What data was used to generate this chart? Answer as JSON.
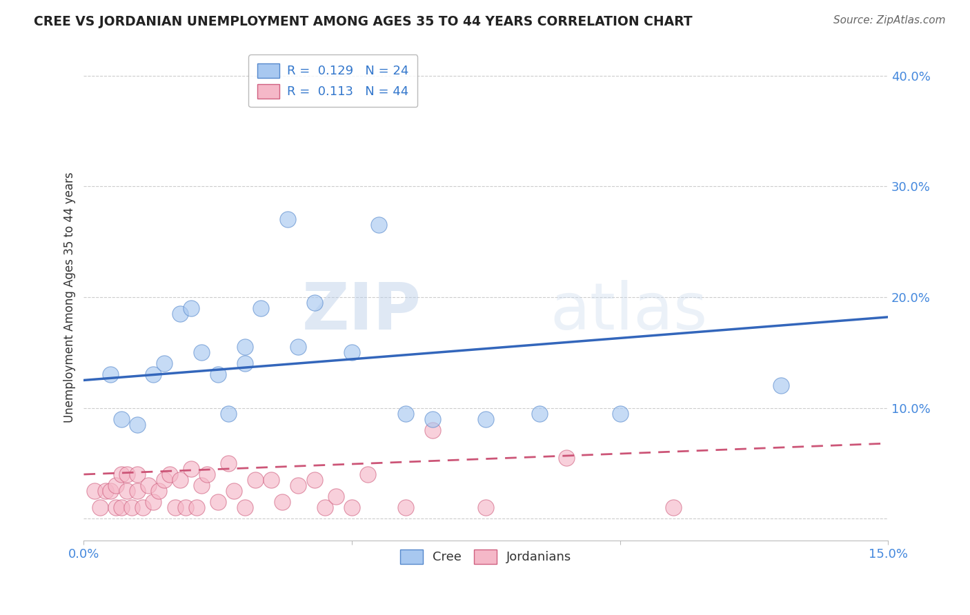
{
  "title": "CREE VS JORDANIAN UNEMPLOYMENT AMONG AGES 35 TO 44 YEARS CORRELATION CHART",
  "source": "Source: ZipAtlas.com",
  "ylabel": "Unemployment Among Ages 35 to 44 years",
  "xlim": [
    0.0,
    0.15
  ],
  "ylim": [
    -0.02,
    0.42
  ],
  "yticks": [
    0.0,
    0.1,
    0.2,
    0.3,
    0.4
  ],
  "ytick_labels": [
    "",
    "10.0%",
    "20.0%",
    "30.0%",
    "40.0%"
  ],
  "xtick_positions": [
    0.0,
    0.05,
    0.1,
    0.15
  ],
  "xtick_labels": [
    "0.0%",
    "",
    "",
    "15.0%"
  ],
  "cree_R": "0.129",
  "cree_N": "24",
  "jordan_R": "0.113",
  "jordan_N": "44",
  "cree_face_color": "#A8C8F0",
  "cree_edge_color": "#5588CC",
  "jordan_face_color": "#F5B8C8",
  "jordan_edge_color": "#D06080",
  "cree_line_color": "#3366BB",
  "jordan_line_color": "#CC5577",
  "cree_line_y0": 0.125,
  "cree_line_y1": 0.182,
  "jordan_line_y0": 0.04,
  "jordan_line_y1": 0.068,
  "cree_x": [
    0.005,
    0.007,
    0.01,
    0.013,
    0.015,
    0.018,
    0.02,
    0.022,
    0.025,
    0.027,
    0.03,
    0.03,
    0.033,
    0.038,
    0.04,
    0.043,
    0.05,
    0.055,
    0.06,
    0.065,
    0.075,
    0.085,
    0.1,
    0.13
  ],
  "cree_y": [
    0.13,
    0.09,
    0.085,
    0.13,
    0.14,
    0.185,
    0.19,
    0.15,
    0.13,
    0.095,
    0.14,
    0.155,
    0.19,
    0.27,
    0.155,
    0.195,
    0.15,
    0.265,
    0.095,
    0.09,
    0.09,
    0.095,
    0.095,
    0.12
  ],
  "jordan_x": [
    0.002,
    0.003,
    0.004,
    0.005,
    0.006,
    0.006,
    0.007,
    0.007,
    0.008,
    0.008,
    0.009,
    0.01,
    0.01,
    0.011,
    0.012,
    0.013,
    0.014,
    0.015,
    0.016,
    0.017,
    0.018,
    0.019,
    0.02,
    0.021,
    0.022,
    0.023,
    0.025,
    0.027,
    0.028,
    0.03,
    0.032,
    0.035,
    0.037,
    0.04,
    0.043,
    0.045,
    0.047,
    0.05,
    0.053,
    0.06,
    0.065,
    0.075,
    0.09,
    0.11
  ],
  "jordan_y": [
    0.025,
    0.01,
    0.025,
    0.025,
    0.01,
    0.03,
    0.01,
    0.04,
    0.025,
    0.04,
    0.01,
    0.025,
    0.04,
    0.01,
    0.03,
    0.015,
    0.025,
    0.035,
    0.04,
    0.01,
    0.035,
    0.01,
    0.045,
    0.01,
    0.03,
    0.04,
    0.015,
    0.05,
    0.025,
    0.01,
    0.035,
    0.035,
    0.015,
    0.03,
    0.035,
    0.01,
    0.02,
    0.01,
    0.04,
    0.01,
    0.08,
    0.01,
    0.055,
    0.01
  ]
}
